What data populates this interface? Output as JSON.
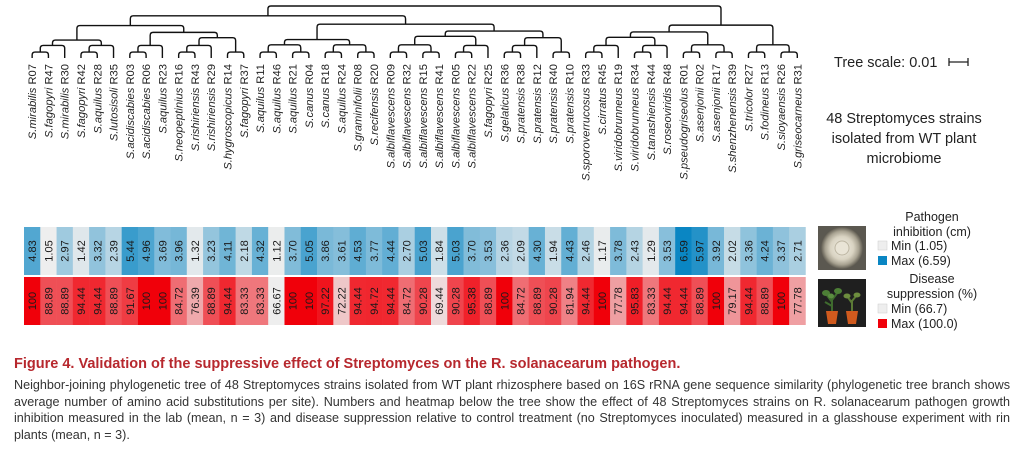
{
  "tree_scale_label": "Tree scale: 0.01",
  "strain_note": "48 Streptomyces strains isolated from WT plant microbiome",
  "legend": {
    "inhibition": {
      "title": "Pathogen inhibition (cm)",
      "min_label": "Min (1.05)",
      "max_label": "Max (6.59)",
      "min_color": "#eeeeee",
      "max_color": "#0a86c3"
    },
    "suppression": {
      "title": "Disease suppression (%)",
      "min_label": "Min (66.7)",
      "max_label": "Max (100.0)",
      "min_color": "#eeeeee",
      "max_color": "#f0000a"
    }
  },
  "icons": [
    "petri-dish-icon",
    "potted-plants-icon"
  ],
  "chart_data": {
    "type": "heatmap",
    "categories": [
      "S.mirabilis R07",
      "S.fagopyri R47",
      "S.mirabilis R30",
      "S.fagopyri R42",
      "S.aquilus R28",
      "S.lutosisoli R35",
      "S.acidiscabies R03",
      "S.acidiscabies R06",
      "S.aquilus R23",
      "S.neopeptinius R16",
      "S.rishiriensis R43",
      "S.rishiriensis R29",
      "S.hygroscopicus R14",
      "S.fagopyri R37",
      "S.aquilus R11",
      "S.aquilus R46",
      "S.aquilus R21",
      "S.canus R04",
      "S.canus R18",
      "S.aquilus R24",
      "S.graminifolii R08",
      "S.recifensis R20",
      "S.albiflavescens R09",
      "S.albiflavescens R32",
      "S.albiflavescens R15",
      "S.albiflavescens R41",
      "S.albiflavescens R05",
      "S.albiflavescens R22",
      "S.fagopyri R25",
      "S.gelaticus R36",
      "S.pratensis R38",
      "S.pratensis R12",
      "S.pratensis R40",
      "S.pratensis R10",
      "S.sporoverrucosus R33",
      "S.cirratus R45",
      "S.viridobrunneus R19",
      "S.viridobrunneus R34",
      "S.tanashiensis R44",
      "S.roseoviridis R48",
      "S.pseudogriseolus R01",
      "S.asenjonii R02",
      "S.asenjonii R17",
      "S.shenzhenensis R39",
      "S.tricolor R27",
      "S.fodineus R13",
      "S.sioyaensis R26",
      "S.griseocarneus R31"
    ],
    "series": [
      {
        "name": "Pathogen inhibition (cm)",
        "values": [
          4.83,
          1.05,
          2.97,
          1.42,
          3.32,
          2.39,
          5.44,
          4.96,
          3.69,
          3.96,
          1.32,
          3.23,
          4.11,
          2.18,
          4.32,
          1.12,
          3.7,
          5.05,
          3.86,
          3.61,
          4.53,
          3.77,
          4.44,
          2.7,
          5.03,
          1.84,
          5.03,
          3.7,
          3.53,
          2.36,
          2.09,
          4.3,
          1.94,
          4.43,
          2.46,
          1.17,
          3.78,
          2.43,
          1.29,
          3.53,
          6.59,
          5.97,
          3.92,
          2.02,
          3.36,
          4.24,
          3.37,
          2.71
        ],
        "labels": [
          "4.83",
          "1.05",
          "2.97",
          "1.42",
          "3.32",
          "2.39",
          "5.44",
          "4.96",
          "3.69",
          "3.96",
          "1.32",
          "3.23",
          "4.11",
          "2.18",
          "4.32",
          "1.12",
          "3.70",
          "5.05",
          "3.86",
          "3.61",
          "4.53",
          "3.77",
          "4.44",
          "2.70",
          "5.03",
          "1.84",
          "5.03",
          "3.70",
          "3.53",
          "2.36",
          "2.09",
          "4.30",
          "1.94",
          "4.43",
          "2.46",
          "1.17",
          "3.78",
          "2.43",
          "1.29",
          "3.53",
          "6.59",
          "5.97",
          "3.92",
          "2.02",
          "3.36",
          "4.24",
          "3.37",
          "2.71"
        ],
        "min": 1.05,
        "max": 6.59
      },
      {
        "name": "Disease suppression (%)",
        "values": [
          100,
          88.89,
          88.89,
          94.44,
          94.44,
          88.89,
          91.67,
          100,
          100,
          84.72,
          76.39,
          88.89,
          94.44,
          83.33,
          83.33,
          66.67,
          100,
          100,
          97.22,
          72.22,
          94.44,
          94.72,
          94.44,
          84.72,
          90.28,
          69.44,
          90.28,
          95.38,
          88.89,
          100,
          84.72,
          88.89,
          90.28,
          81.94,
          94.44,
          100,
          77.78,
          95.83,
          83.33,
          94.44,
          94.44,
          88.89,
          100,
          79.17,
          94.44,
          88.89,
          100,
          77.78
        ],
        "labels": [
          "100",
          "88.89",
          "88.89",
          "94.44",
          "94.44",
          "88.89",
          "91.67",
          "100",
          "100",
          "84.72",
          "76.39",
          "88.89",
          "94.44",
          "83.33",
          "83.33",
          "66.67",
          "100",
          "100",
          "97.22",
          "72.22",
          "94.44",
          "94.72",
          "94.44",
          "84.72",
          "90.28",
          "69.44",
          "90.28",
          "95.38",
          "88.89",
          "100",
          "84.72",
          "88.89",
          "90.28",
          "81.94",
          "94.44",
          "100",
          "77.78",
          "95.83",
          "83.33",
          "94.44",
          "94.44",
          "88.89",
          "100",
          "79.17",
          "94.44",
          "88.89",
          "100",
          "77.78"
        ],
        "min": 66.7,
        "max": 100.0
      }
    ],
    "title": "",
    "xlabel": "",
    "ylabel": ""
  },
  "caption": {
    "title": "Figure 4. Validation of the suppressive effect of Streptomyces on the R. solanacearum pathogen.",
    "body": "Neighbor-joining phylogenetic tree of 48 Streptomyces strains isolated from WT plant rhizosphere based on 16S rRNA gene sequence similarity (phylogenetic tree branch shows average number of amino acid substitutions per site). Numbers and heatmap below the tree show the effect of 48 Streptomyces strains on R. solanacearum pathogen growth inhibition measured in the lab (mean, n = 3) and disease suppression relative to control treatment (no Streptomyces inoculated) measured in a glasshouse experiment with rin plants (mean, n = 3)."
  }
}
